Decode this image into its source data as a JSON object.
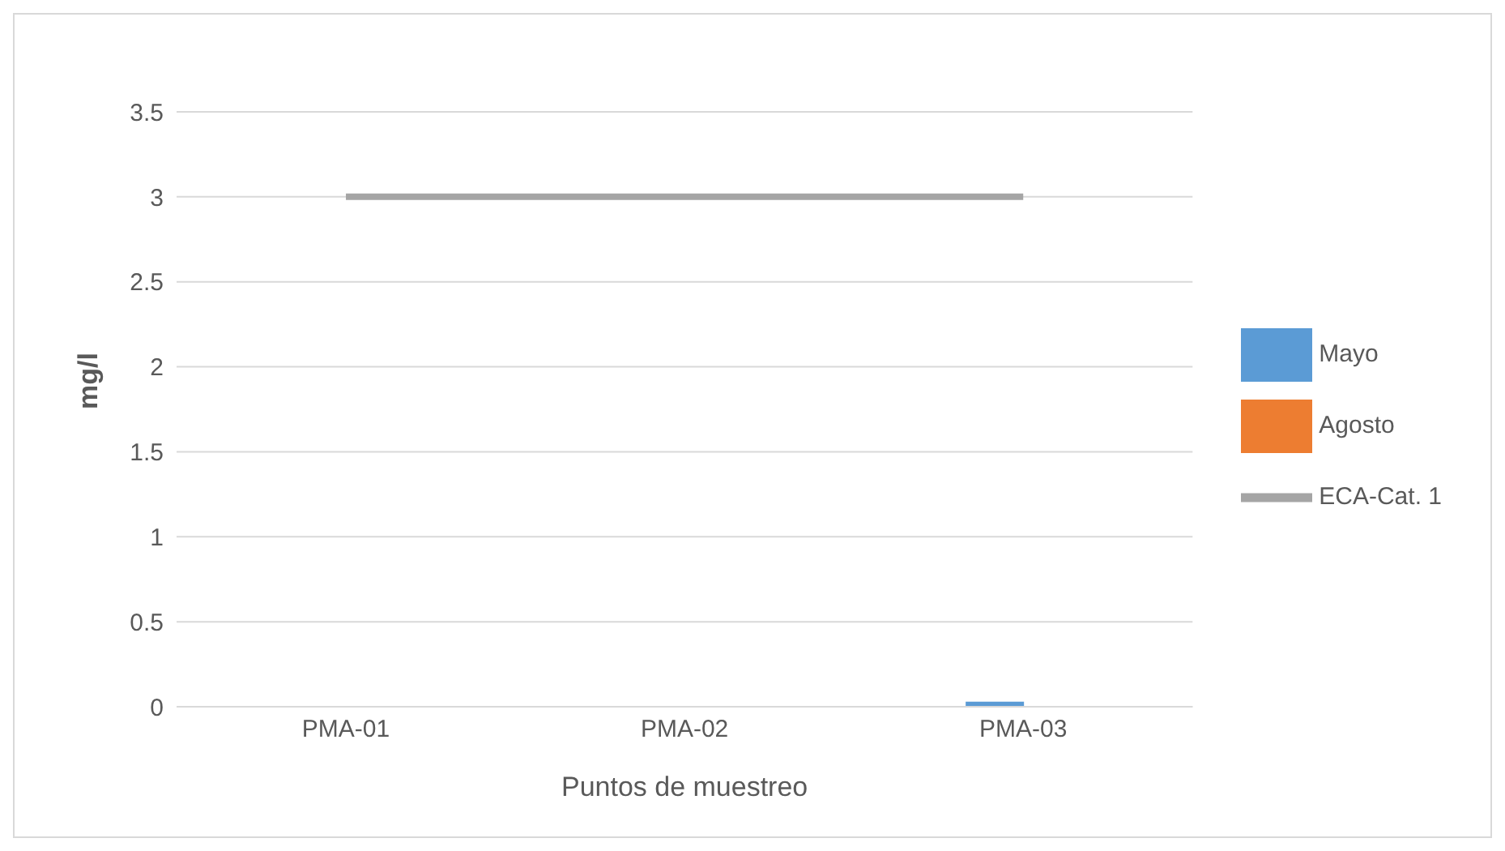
{
  "chart_data": {
    "type": "bar",
    "xlabel": "Puntos de muestreo",
    "ylabel": "mg/l",
    "categories": [
      "PMA-01",
      "PMA-02",
      "PMA-03"
    ],
    "series": [
      {
        "name": "Mayo",
        "color": "#5b9bd5",
        "values": [
          0,
          0,
          0.03
        ]
      },
      {
        "name": "Agosto",
        "color": "#ed7d31",
        "values": [
          0,
          0,
          0
        ]
      },
      {
        "name": "ECA-Cat. 1",
        "type": "line",
        "color": "#a5a5a5",
        "values": [
          3,
          3,
          3
        ]
      }
    ],
    "ylim": [
      0,
      3.5
    ],
    "yticks": [
      0,
      0.5,
      1,
      1.5,
      2,
      2.5,
      3,
      3.5
    ],
    "grid": "y",
    "legend": "right",
    "marker": "none"
  }
}
